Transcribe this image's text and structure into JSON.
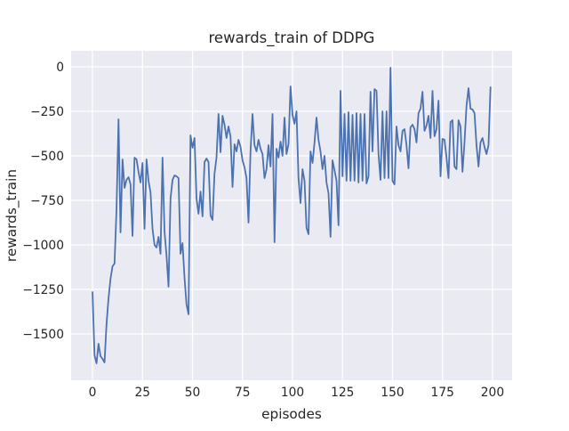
{
  "chart_data": {
    "type": "line",
    "title": "rewards_train of DDPG",
    "xlabel": "episodes",
    "ylabel": "rewards_train",
    "x": "episode index 0..199",
    "xlim": [
      -10.7,
      209.8
    ],
    "ylim": [
      -1760,
      90
    ],
    "xticks": [
      0,
      25,
      50,
      75,
      100,
      125,
      150,
      175,
      200
    ],
    "yticks": [
      0,
      -250,
      -500,
      -750,
      -1000,
      -1250,
      -1500
    ],
    "grid": true,
    "legend": false,
    "style": {
      "line_color": "#4c72b0",
      "line_width": 1.8,
      "axes_background": "#eaeaf2",
      "grid_color": "#ffffff",
      "figure_background": "#ffffff",
      "text_color": "#262626"
    },
    "series": [
      {
        "name": "rewards_train",
        "values": [
          -1265,
          -1620,
          -1665,
          -1555,
          -1625,
          -1640,
          -1660,
          -1445,
          -1300,
          -1190,
          -1120,
          -1105,
          -800,
          -295,
          -930,
          -520,
          -680,
          -635,
          -620,
          -660,
          -950,
          -510,
          -520,
          -590,
          -650,
          -540,
          -910,
          -520,
          -640,
          -705,
          -910,
          -1000,
          -1015,
          -955,
          -1050,
          -510,
          -925,
          -1060,
          -1235,
          -740,
          -635,
          -610,
          -615,
          -625,
          -1050,
          -990,
          -1185,
          -1335,
          -1390,
          -385,
          -455,
          -400,
          -740,
          -825,
          -700,
          -840,
          -535,
          -515,
          -535,
          -835,
          -860,
          -600,
          -510,
          -265,
          -480,
          -275,
          -325,
          -400,
          -335,
          -390,
          -675,
          -435,
          -475,
          -410,
          -450,
          -525,
          -565,
          -625,
          -875,
          -475,
          -265,
          -440,
          -475,
          -410,
          -460,
          -490,
          -625,
          -575,
          -440,
          -560,
          -265,
          -985,
          -460,
          -510,
          -420,
          -500,
          -285,
          -490,
          -435,
          -110,
          -270,
          -320,
          -250,
          -625,
          -765,
          -575,
          -640,
          -905,
          -940,
          -475,
          -540,
          -425,
          -285,
          -410,
          -475,
          -575,
          -500,
          -650,
          -710,
          -955,
          -525,
          -580,
          -640,
          -890,
          -135,
          -615,
          -265,
          -640,
          -255,
          -640,
          -270,
          -640,
          -260,
          -650,
          -265,
          -640,
          -265,
          -655,
          -615,
          -140,
          -475,
          -125,
          -135,
          -490,
          -635,
          -250,
          -625,
          -250,
          -625,
          -5,
          -640,
          -660,
          -335,
          -440,
          -475,
          -360,
          -350,
          -440,
          -570,
          -340,
          -325,
          -350,
          -425,
          -260,
          -235,
          -140,
          -360,
          -330,
          -275,
          -400,
          -135,
          -390,
          -350,
          -190,
          -615,
          -405,
          -410,
          -510,
          -625,
          -310,
          -300,
          -560,
          -575,
          -300,
          -335,
          -590,
          -425,
          -220,
          -120,
          -235,
          -240,
          -260,
          -440,
          -560,
          -425,
          -400,
          -450,
          -490,
          -440,
          -115
        ]
      }
    ]
  }
}
